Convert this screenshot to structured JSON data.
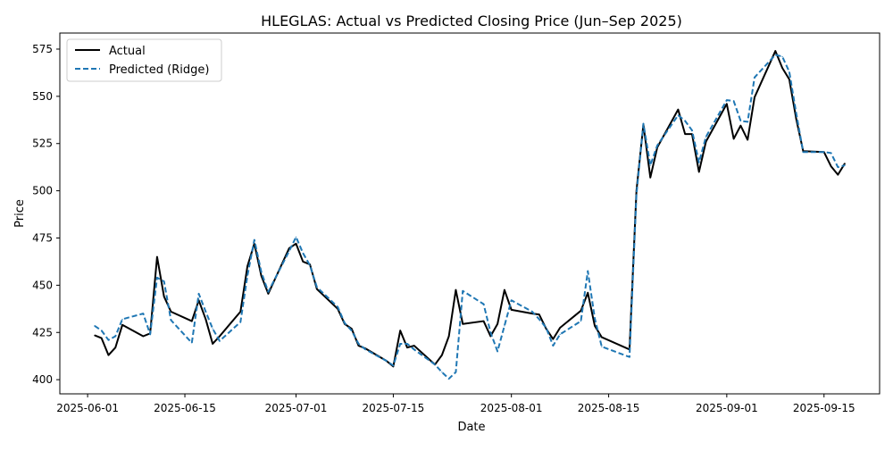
{
  "chart_data": {
    "type": "line",
    "title": "HLEGLAS: Actual vs Predicted Closing Price (Jun–Sep 2025)",
    "xlabel": "Date",
    "ylabel": "Price",
    "x_ticks": [
      "2025-06-01",
      "2025-06-15",
      "2025-07-01",
      "2025-07-15",
      "2025-08-01",
      "2025-08-15",
      "2025-09-01",
      "2025-09-15"
    ],
    "y_ticks": [
      400,
      425,
      450,
      475,
      500,
      525,
      550,
      575
    ],
    "xlim": [
      "2025-05-28",
      "2025-09-23"
    ],
    "ylim": [
      392.5,
      583.5
    ],
    "grid": false,
    "legend_position": "top-left",
    "colors": {
      "actual": "#000000",
      "predicted": "#1f77b4"
    },
    "series": [
      {
        "name": "Actual",
        "style": "solid",
        "x": [
          "2025-06-02",
          "2025-06-03",
          "2025-06-04",
          "2025-06-05",
          "2025-06-06",
          "2025-06-09",
          "2025-06-10",
          "2025-06-11",
          "2025-06-12",
          "2025-06-13",
          "2025-06-16",
          "2025-06-17",
          "2025-06-18",
          "2025-06-19",
          "2025-06-20",
          "2025-06-23",
          "2025-06-24",
          "2025-06-25",
          "2025-06-26",
          "2025-06-27",
          "2025-06-30",
          "2025-07-01",
          "2025-07-02",
          "2025-07-03",
          "2025-07-04",
          "2025-07-07",
          "2025-07-08",
          "2025-07-09",
          "2025-07-10",
          "2025-07-11",
          "2025-07-14",
          "2025-07-15",
          "2025-07-16",
          "2025-07-17",
          "2025-07-18",
          "2025-07-21",
          "2025-07-22",
          "2025-07-23",
          "2025-07-24",
          "2025-07-25",
          "2025-07-28",
          "2025-07-29",
          "2025-07-30",
          "2025-07-31",
          "2025-08-01",
          "2025-08-04",
          "2025-08-05",
          "2025-08-06",
          "2025-08-07",
          "2025-08-08",
          "2025-08-11",
          "2025-08-12",
          "2025-08-13",
          "2025-08-14",
          "2025-08-18",
          "2025-08-19",
          "2025-08-20",
          "2025-08-21",
          "2025-08-22",
          "2025-08-25",
          "2025-08-26",
          "2025-08-27",
          "2025-08-28",
          "2025-08-29",
          "2025-09-01",
          "2025-09-02",
          "2025-09-03",
          "2025-09-04",
          "2025-09-05",
          "2025-09-08",
          "2025-09-09",
          "2025-09-10",
          "2025-09-11",
          "2025-09-12",
          "2025-09-15",
          "2025-09-16",
          "2025-09-17",
          "2025-09-18"
        ],
        "values": [
          423.5,
          422,
          413,
          417,
          429,
          423,
          424.5,
          465,
          444,
          436,
          431,
          442,
          432,
          419,
          423,
          436,
          460,
          472,
          455,
          445.5,
          469.5,
          472,
          462.5,
          461,
          448,
          437.5,
          429.5,
          427,
          418,
          416.5,
          410,
          407,
          426,
          417,
          418,
          408,
          413,
          423,
          447.5,
          429.5,
          431,
          423,
          429.5,
          447.5,
          437,
          435,
          434.5,
          427,
          421.5,
          427.5,
          436.5,
          446,
          428.5,
          422.5,
          416,
          500,
          535,
          507,
          523,
          543,
          530,
          530,
          510,
          526,
          546,
          527.5,
          534.5,
          527,
          549.5,
          574,
          565,
          559,
          538,
          521,
          520.5,
          513,
          508.5,
          514.5
        ]
      },
      {
        "name": "Predicted (Ridge)",
        "style": "dashed",
        "x": [
          "2025-06-02",
          "2025-06-03",
          "2025-06-04",
          "2025-06-05",
          "2025-06-06",
          "2025-06-09",
          "2025-06-10",
          "2025-06-11",
          "2025-06-12",
          "2025-06-13",
          "2025-06-16",
          "2025-06-17",
          "2025-06-18",
          "2025-06-19",
          "2025-06-20",
          "2025-06-23",
          "2025-06-24",
          "2025-06-25",
          "2025-06-26",
          "2025-06-27",
          "2025-06-30",
          "2025-07-01",
          "2025-07-02",
          "2025-07-03",
          "2025-07-04",
          "2025-07-07",
          "2025-07-08",
          "2025-07-09",
          "2025-07-10",
          "2025-07-11",
          "2025-07-14",
          "2025-07-15",
          "2025-07-16",
          "2025-07-17",
          "2025-07-18",
          "2025-07-21",
          "2025-07-22",
          "2025-07-23",
          "2025-07-24",
          "2025-07-25",
          "2025-07-28",
          "2025-07-29",
          "2025-07-30",
          "2025-07-31",
          "2025-08-01",
          "2025-08-04",
          "2025-08-05",
          "2025-08-06",
          "2025-08-07",
          "2025-08-08",
          "2025-08-11",
          "2025-08-12",
          "2025-08-13",
          "2025-08-14",
          "2025-08-18",
          "2025-08-19",
          "2025-08-20",
          "2025-08-21",
          "2025-08-22",
          "2025-08-25",
          "2025-08-26",
          "2025-08-27",
          "2025-08-28",
          "2025-08-29",
          "2025-09-01",
          "2025-09-02",
          "2025-09-03",
          "2025-09-04",
          "2025-09-05",
          "2025-09-08",
          "2025-09-09",
          "2025-09-10",
          "2025-09-11",
          "2025-09-12",
          "2025-09-15",
          "2025-09-16",
          "2025-09-17",
          "2025-09-18"
        ],
        "values": [
          428.5,
          426,
          421,
          423,
          432,
          435,
          424,
          454,
          452,
          431.5,
          419.5,
          445.5,
          436,
          427,
          420.5,
          430.5,
          455,
          474,
          457,
          446.5,
          468,
          475.5,
          467,
          460.5,
          449,
          438.5,
          430,
          426,
          419,
          416,
          410,
          407.5,
          419,
          419,
          416,
          408,
          404,
          400.5,
          404,
          447,
          440,
          425,
          415,
          428.5,
          442,
          436,
          432,
          427.5,
          418,
          424,
          431,
          457.5,
          432.5,
          417.5,
          412,
          498,
          535.5,
          513.5,
          524,
          540,
          537,
          532,
          515,
          528.5,
          548,
          547.5,
          537,
          536.5,
          560,
          572,
          571,
          563,
          541,
          520.5,
          520.5,
          520,
          512.5,
          513.5
        ]
      }
    ]
  }
}
